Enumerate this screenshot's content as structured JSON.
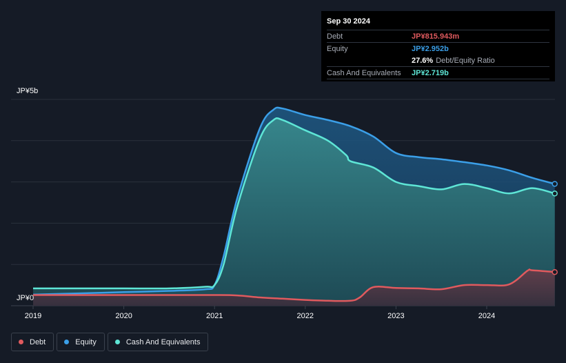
{
  "tooltip": {
    "date": "Sep 30 2024",
    "rows": {
      "debt": {
        "label": "Debt",
        "value": "JP¥815.943m",
        "color": "#e05a5e"
      },
      "equity": {
        "label": "Equity",
        "value": "JP¥2.952b",
        "color": "#3b9fe8"
      },
      "ratio": {
        "value": "27.6%",
        "label": "Debt/Equity Ratio"
      },
      "cash": {
        "label": "Cash And Equivalents",
        "value": "JP¥2.719b",
        "color": "#5ee6d6"
      }
    }
  },
  "legend": [
    {
      "label": "Debt",
      "color": "#e05a5e"
    },
    {
      "label": "Equity",
      "color": "#3b9fe8"
    },
    {
      "label": "Cash And Equivalents",
      "color": "#5ee6d6"
    }
  ],
  "chart_data": {
    "type": "area",
    "ylabel_top": "JP¥5b",
    "ylabel_bottom": "JP¥0",
    "ylim": [
      0,
      5
    ],
    "xlim": [
      2019.0,
      2024.75
    ],
    "x_ticks": [
      "2019",
      "2020",
      "2021",
      "2022",
      "2023",
      "2024"
    ],
    "grid": true,
    "series": [
      {
        "name": "Equity",
        "color": "#3b9fe8",
        "x": [
          2019.0,
          2019.5,
          2020.0,
          2020.5,
          2020.9,
          2021.0,
          2021.1,
          2021.25,
          2021.5,
          2021.65,
          2021.75,
          2022.0,
          2022.25,
          2022.5,
          2022.75,
          2023.0,
          2023.25,
          2023.5,
          2023.75,
          2024.0,
          2024.25,
          2024.5,
          2024.75
        ],
        "values": [
          0.27,
          0.3,
          0.33,
          0.36,
          0.4,
          0.5,
          1.2,
          2.6,
          4.3,
          4.75,
          4.78,
          4.62,
          4.5,
          4.35,
          4.1,
          3.7,
          3.6,
          3.55,
          3.48,
          3.4,
          3.28,
          3.1,
          2.952
        ]
      },
      {
        "name": "Cash And Equivalents",
        "color": "#5ee6d6",
        "x": [
          2019.0,
          2019.5,
          2020.0,
          2020.5,
          2020.9,
          2021.0,
          2021.1,
          2021.25,
          2021.5,
          2021.65,
          2021.75,
          2022.0,
          2022.25,
          2022.45,
          2022.5,
          2022.75,
          2023.0,
          2023.25,
          2023.5,
          2023.75,
          2024.0,
          2024.25,
          2024.5,
          2024.75
        ],
        "values": [
          0.42,
          0.42,
          0.42,
          0.42,
          0.46,
          0.5,
          1.0,
          2.4,
          4.05,
          4.5,
          4.5,
          4.25,
          4.0,
          3.65,
          3.5,
          3.35,
          3.0,
          2.9,
          2.82,
          2.95,
          2.85,
          2.72,
          2.85,
          2.719
        ]
      },
      {
        "name": "Debt",
        "color": "#e05a5e",
        "x": [
          2019.0,
          2019.5,
          2020.0,
          2020.5,
          2021.0,
          2021.25,
          2021.5,
          2021.75,
          2022.0,
          2022.25,
          2022.5,
          2022.6,
          2022.75,
          2023.0,
          2023.25,
          2023.5,
          2023.75,
          2024.0,
          2024.25,
          2024.45,
          2024.5,
          2024.75
        ],
        "values": [
          0.26,
          0.26,
          0.26,
          0.26,
          0.26,
          0.25,
          0.2,
          0.17,
          0.14,
          0.12,
          0.12,
          0.2,
          0.45,
          0.43,
          0.42,
          0.4,
          0.5,
          0.5,
          0.52,
          0.85,
          0.86,
          0.816
        ]
      }
    ]
  }
}
